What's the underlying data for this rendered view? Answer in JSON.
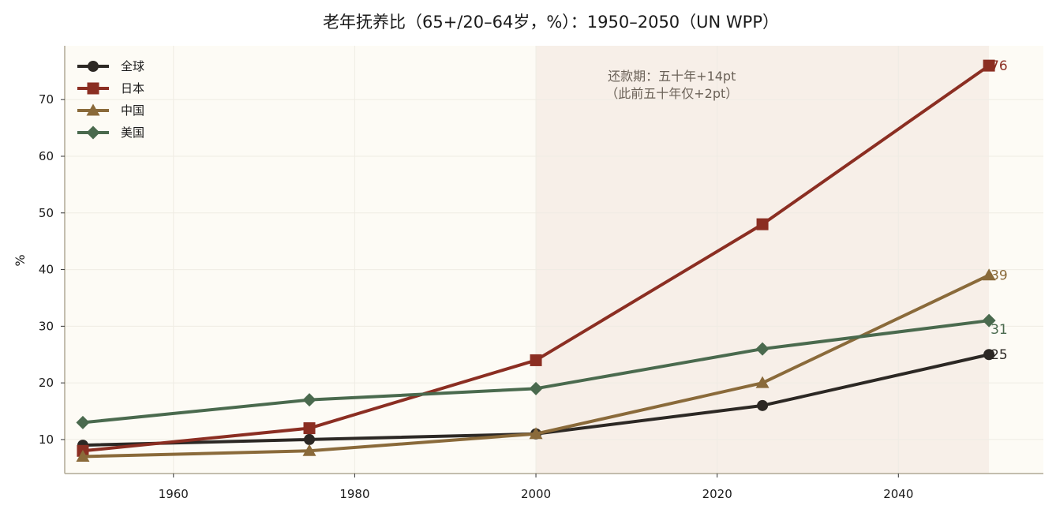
{
  "colors": {
    "plot_bg": "#fdfbf5",
    "shade": "#f7efe8",
    "grid": "#efece4",
    "axis": "#b0a995"
  },
  "chart_data": {
    "type": "line",
    "title": "老年抚养比（65+/20–64岁，%）：1950–2050（UN WPP）",
    "xlabel": "",
    "ylabel": "%",
    "xlim": [
      1948,
      2056
    ],
    "ylim": [
      4,
      79.5
    ],
    "x_ticks": [
      1960,
      1980,
      2000,
      2020,
      2040
    ],
    "y_ticks": [
      10,
      20,
      30,
      40,
      50,
      60,
      70
    ],
    "grid": true,
    "legend_position": "top-left",
    "shaded_range": [
      2000,
      2050
    ],
    "annotation": {
      "line1": "还款期：五十年+14pt",
      "line2": "（此前五十年仅+2pt）",
      "x": 2015
    },
    "x": [
      1950,
      1975,
      2000,
      2025,
      2050
    ],
    "series": [
      {
        "name": "全球",
        "values": [
          9,
          10,
          11,
          16,
          25
        ],
        "color": "#2c2824",
        "marker": "circle",
        "end_label": "25"
      },
      {
        "name": "日本",
        "values": [
          8,
          12,
          24,
          48,
          76
        ],
        "color": "#8b2e22",
        "marker": "square",
        "end_label": "76"
      },
      {
        "name": "中国",
        "values": [
          7,
          8,
          11,
          20,
          39
        ],
        "color": "#8a6a3a",
        "marker": "triangle",
        "end_label": "39"
      },
      {
        "name": "美国",
        "values": [
          13,
          17,
          19,
          26,
          31
        ],
        "color": "#4a6a4e",
        "marker": "diamond",
        "end_label": "31"
      }
    ]
  }
}
